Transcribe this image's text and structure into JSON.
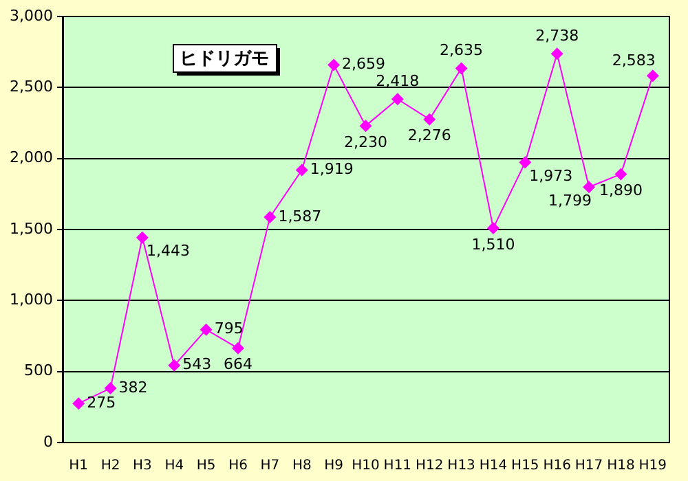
{
  "chart_data": {
    "type": "line",
    "title": "ヒドリガモ",
    "categories": [
      "H1",
      "H2",
      "H3",
      "H4",
      "H5",
      "H6",
      "H7",
      "H8",
      "H9",
      "H10",
      "H11",
      "H12",
      "H13",
      "H14",
      "H15",
      "H16",
      "H17",
      "H18",
      "H19"
    ],
    "series": [
      {
        "color": "#ff00ff",
        "values": [
          275,
          382,
          1443,
          543,
          795,
          664,
          1587,
          1919,
          2659,
          2230,
          2418,
          2276,
          2635,
          1510,
          1973,
          2738,
          1799,
          1890,
          2583
        ],
        "value_labels": [
          "275",
          "382",
          "1,443",
          "543",
          "795",
          "664",
          "1,587",
          "1,919",
          "2,659",
          "2,230",
          "2,418",
          "2,276",
          "2,635",
          "1,510",
          "1,973",
          "2,738",
          "1,799",
          "1,890",
          "2,583"
        ]
      }
    ],
    "ylim": [
      0,
      3000
    ],
    "yticks": [
      {
        "value": 0,
        "label": "0"
      },
      {
        "value": 500,
        "label": "500"
      },
      {
        "value": 1000,
        "label": "1,000"
      },
      {
        "value": 1500,
        "label": "1,500"
      },
      {
        "value": 2000,
        "label": "2,000"
      },
      {
        "value": 2500,
        "label": "2,500"
      },
      {
        "value": 3000,
        "label": "3,000"
      }
    ],
    "grid": "y",
    "legend": false,
    "marker": "diamond",
    "line_style": "solid"
  }
}
